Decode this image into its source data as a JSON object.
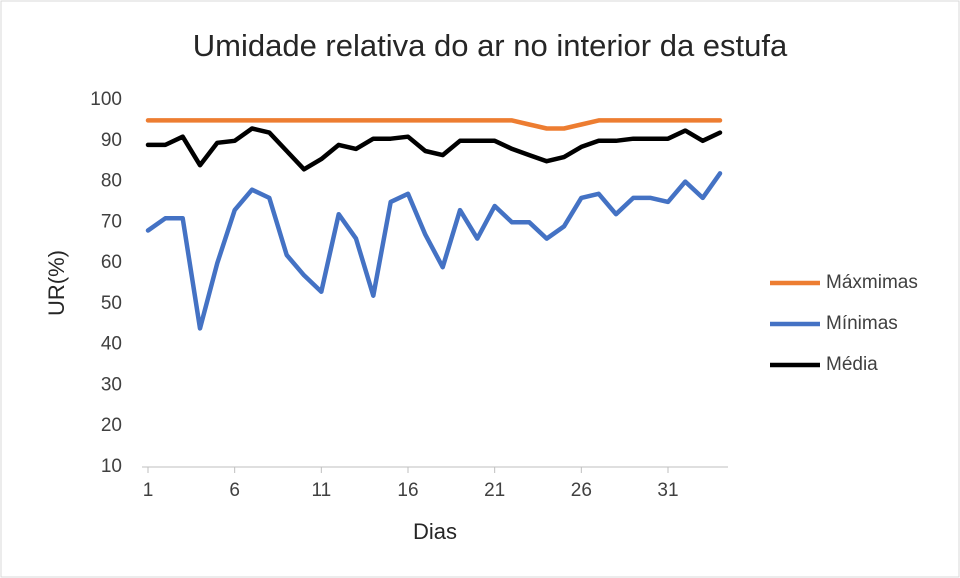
{
  "chart_data": {
    "type": "line",
    "title": "Umidade relativa do ar no interior da estufa",
    "x_label": "Dias",
    "y_label": "UR(%)",
    "x": [
      1,
      2,
      3,
      4,
      5,
      6,
      7,
      8,
      9,
      10,
      11,
      12,
      13,
      14,
      15,
      16,
      17,
      18,
      19,
      20,
      21,
      22,
      23,
      24,
      25,
      26,
      27,
      28,
      29,
      30,
      31,
      32,
      33,
      34
    ],
    "xlim": [
      1,
      34
    ],
    "xticks": [
      1,
      6,
      11,
      16,
      21,
      26,
      31
    ],
    "ylim": [
      10,
      100
    ],
    "yticks": [
      10,
      20,
      30,
      40,
      50,
      60,
      70,
      80,
      90,
      100
    ],
    "grid": false,
    "legend": "right",
    "series": [
      {
        "name": "Máxmimas",
        "color": "#ed7d31",
        "values": [
          95,
          95,
          95,
          95,
          95,
          95,
          95,
          95,
          95,
          95,
          95,
          95,
          95,
          95,
          95,
          95,
          95,
          95,
          95,
          95,
          95,
          95,
          94,
          93,
          93,
          94,
          95,
          95,
          95,
          95,
          95,
          95,
          95,
          95
        ]
      },
      {
        "name": "Mínimas",
        "color": "#4472c4",
        "values": [
          68,
          71,
          71,
          44,
          60,
          73,
          78,
          76,
          62,
          57,
          53,
          72,
          66,
          52,
          75,
          77,
          67,
          59,
          73,
          66,
          74,
          70,
          70,
          66,
          69,
          76,
          77,
          72,
          76,
          76,
          75,
          80,
          76,
          82
        ]
      },
      {
        "name": "Média",
        "color": "#000000",
        "values": [
          89,
          89,
          91,
          84,
          89.5,
          90,
          93,
          92,
          87.5,
          83,
          85.5,
          89,
          88,
          90.5,
          90.5,
          91,
          87.5,
          86.5,
          90,
          90,
          90,
          88,
          86.5,
          85,
          86,
          88.5,
          90,
          90,
          90.5,
          90.5,
          90.5,
          92.5,
          90,
          92
        ]
      }
    ]
  }
}
